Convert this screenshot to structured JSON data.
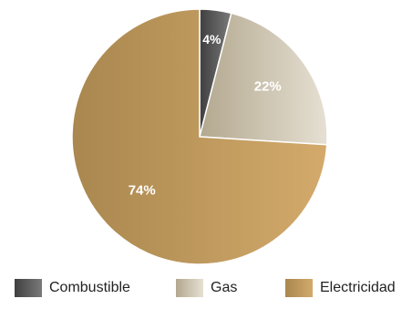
{
  "chart_data": {
    "type": "pie",
    "title": "",
    "slices": [
      {
        "label": "Combustible",
        "value": 4,
        "display": "4%",
        "color": "#5f5f5f"
      },
      {
        "label": "Gas",
        "value": 22,
        "display": "22%",
        "color": "#cbc2b1"
      },
      {
        "label": "Electricidad",
        "value": 74,
        "display": "74%",
        "color": "#c09a5c"
      }
    ],
    "start_angle": "12 o'clock",
    "direction": "clockwise",
    "legend_position": "bottom"
  }
}
